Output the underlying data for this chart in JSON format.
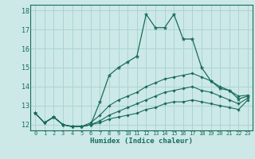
{
  "xlabel": "Humidex (Indice chaleur)",
  "background_color": "#cce9e7",
  "grid_color": "#aad4d1",
  "line_color": "#1a6b5a",
  "xlim": [
    -0.5,
    23.5
  ],
  "ylim": [
    11.7,
    18.3
  ],
  "xticks": [
    0,
    1,
    2,
    3,
    4,
    5,
    6,
    7,
    8,
    9,
    10,
    11,
    12,
    13,
    14,
    15,
    16,
    17,
    18,
    19,
    20,
    21,
    22,
    23
  ],
  "yticks": [
    12,
    13,
    14,
    15,
    16,
    17,
    18
  ],
  "line1_y": [
    12.6,
    12.1,
    12.4,
    12.0,
    11.9,
    11.9,
    12.0,
    13.2,
    14.6,
    15.0,
    15.3,
    15.6,
    17.8,
    17.1,
    17.1,
    17.8,
    16.5,
    16.5,
    15.0,
    14.3,
    13.9,
    13.8,
    13.35,
    13.5
  ],
  "line2_y": [
    12.6,
    12.1,
    12.4,
    12.0,
    11.9,
    11.9,
    12.1,
    12.5,
    13.0,
    13.3,
    13.5,
    13.7,
    14.0,
    14.2,
    14.4,
    14.5,
    14.6,
    14.7,
    14.5,
    14.3,
    14.0,
    13.8,
    13.5,
    13.55
  ],
  "line3_y": [
    12.6,
    12.1,
    12.4,
    12.0,
    11.9,
    11.9,
    12.0,
    12.2,
    12.5,
    12.7,
    12.9,
    13.1,
    13.3,
    13.5,
    13.7,
    13.8,
    13.9,
    14.0,
    13.8,
    13.7,
    13.5,
    13.3,
    13.1,
    13.4
  ],
  "line4_y": [
    12.6,
    12.1,
    12.4,
    12.0,
    11.9,
    11.9,
    12.0,
    12.1,
    12.3,
    12.4,
    12.5,
    12.6,
    12.8,
    12.9,
    13.1,
    13.2,
    13.2,
    13.3,
    13.2,
    13.1,
    13.0,
    12.9,
    12.8,
    13.3
  ]
}
